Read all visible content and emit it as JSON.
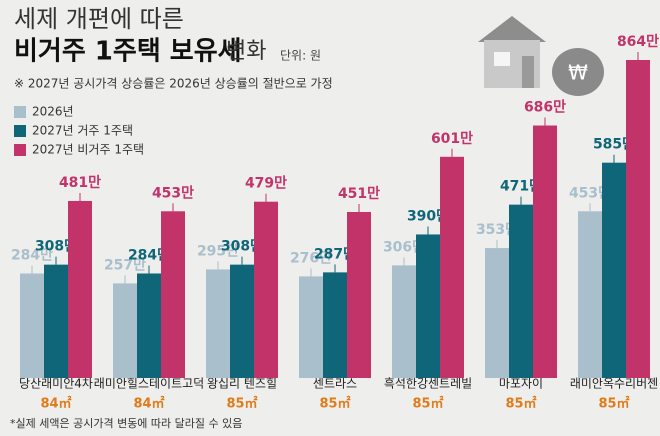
{
  "chart_data": {
    "type": "bar",
    "title": {
      "line1": "세제 개편에 따른",
      "line2": "비거주 1주택 보유세",
      "line2_rest": "변화"
    },
    "unit": "단위: 원",
    "note": "※ 2027년 공시가격 상승률은 2026년 상승률의 절반으로 가정",
    "footnote": "*실제 세액은 공시가격 변동에 따라 달라질 수 있음",
    "categories": [
      "당산래미안4차",
      "래미안힐스테이트고덕",
      "왕십리 텐즈힐",
      "센트라스",
      "흑석한강센트레빌",
      "마포자이",
      "래미안옥수리버젠"
    ],
    "sizes": [
      "84㎡",
      "84㎡",
      "85㎡",
      "85㎡",
      "85㎡",
      "85㎡",
      "85㎡"
    ],
    "series": [
      {
        "name": "2026년",
        "color": "#a9bfcc",
        "values": [
          284,
          257,
          295,
          276,
          306,
          353,
          453
        ],
        "value_labels": [
          "284만",
          "257만",
          "295만",
          "276만",
          "306만",
          "353만",
          "453만"
        ]
      },
      {
        "name": "2027년 거주 1주택",
        "color": "#0f6679",
        "values": [
          308,
          284,
          308,
          287,
          390,
          471,
          585
        ],
        "value_labels": [
          "308만",
          "284만",
          "308만",
          "287만",
          "390만",
          "471만",
          "585만"
        ]
      },
      {
        "name": "2027년 비거주 1주택",
        "color": "#c2336a",
        "values": [
          481,
          453,
          479,
          451,
          601,
          686,
          864
        ],
        "value_labels": [
          "481만",
          "453만",
          "479만",
          "451만",
          "601만",
          "686만",
          "864만"
        ]
      }
    ]
  }
}
